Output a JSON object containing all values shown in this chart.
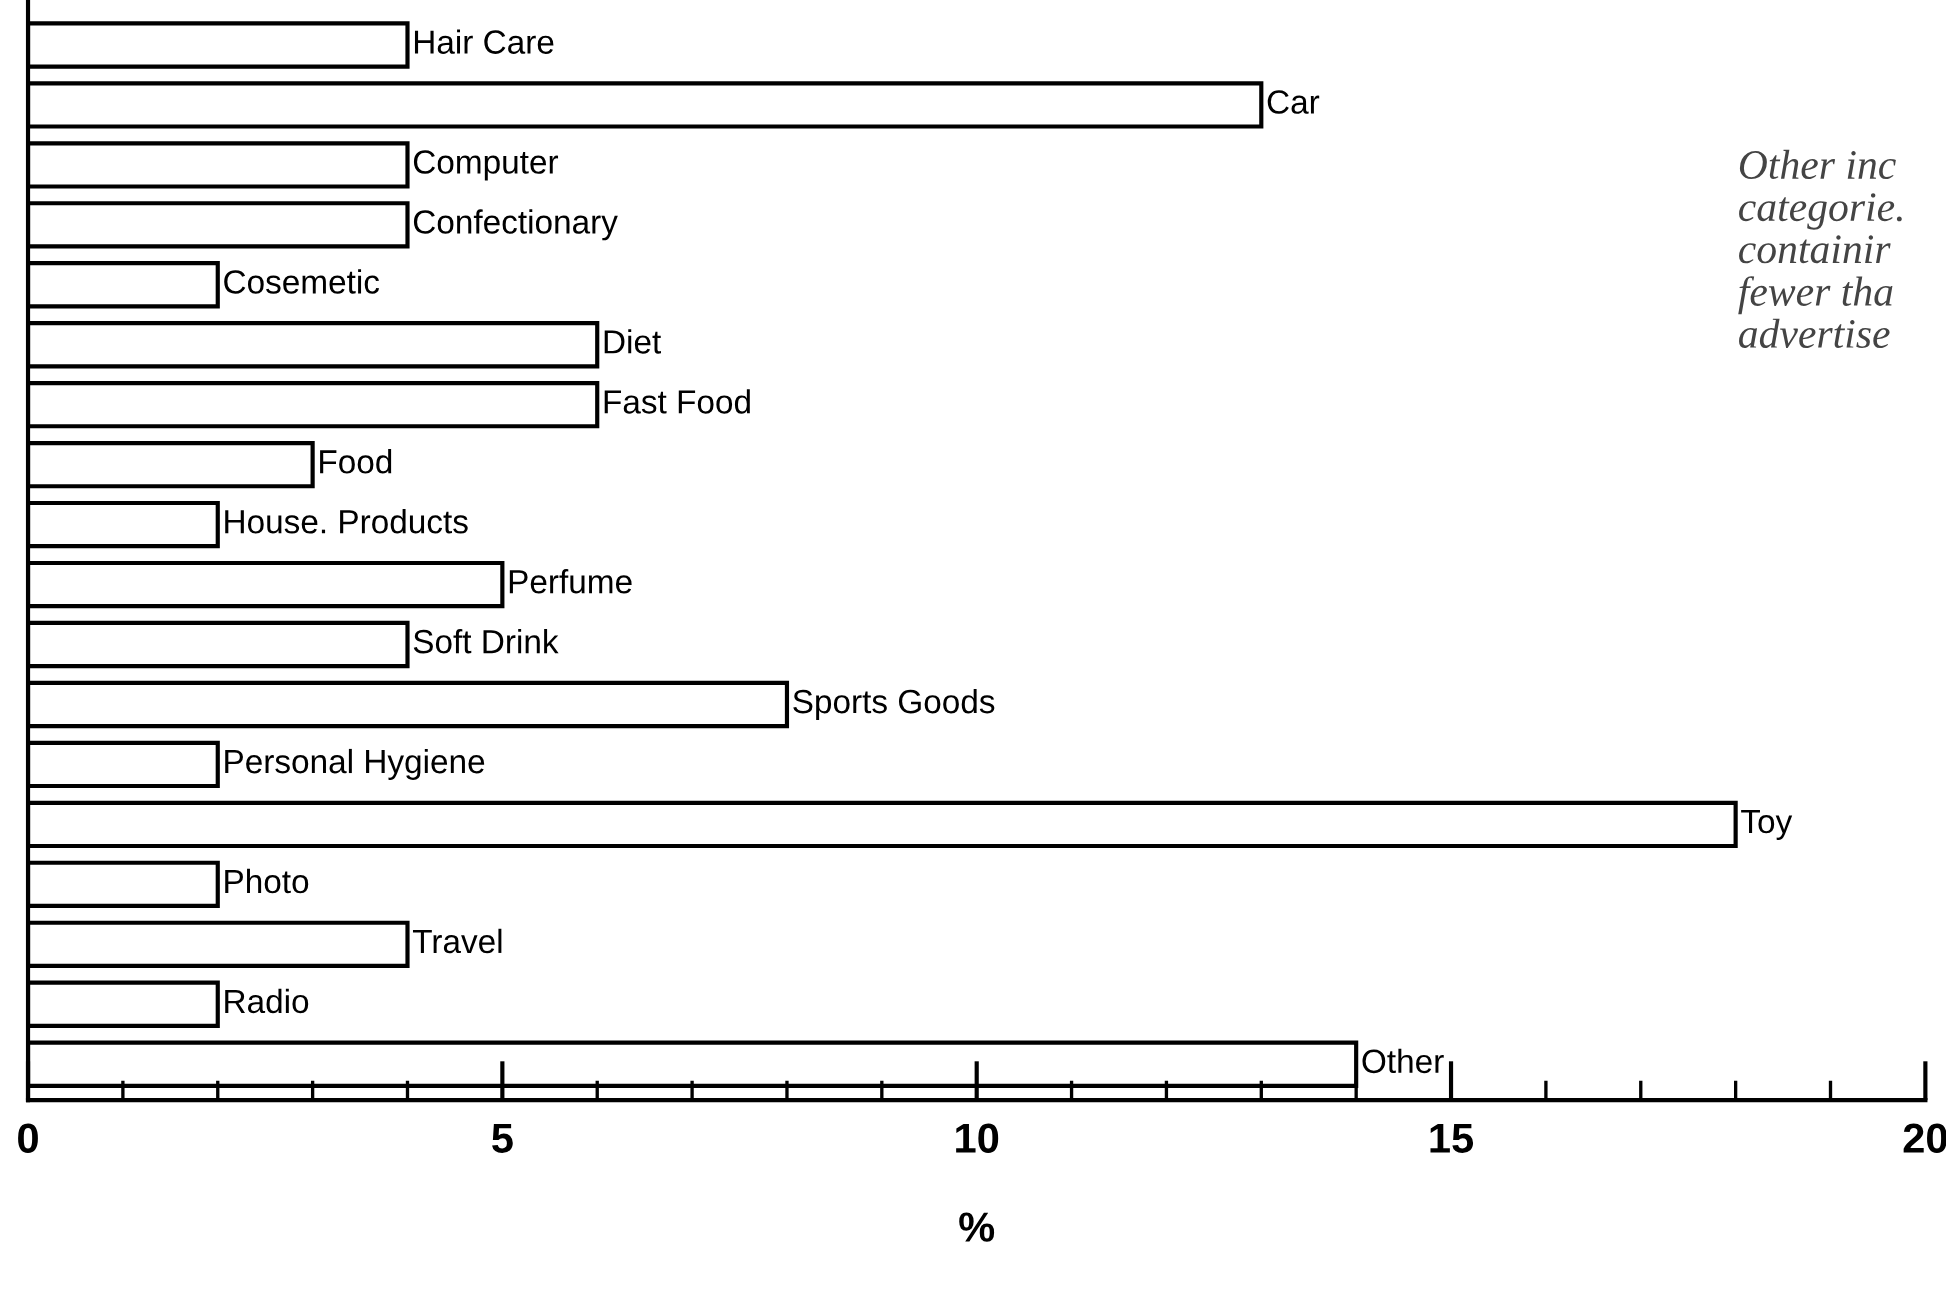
{
  "chart_data": {
    "type": "bar",
    "orientation": "horizontal",
    "xlabel": "%",
    "categories": [
      "Hair Care",
      "Car",
      "Computer",
      "Confectionary",
      "Cosemetic",
      "Diet",
      "Fast Food",
      "Food",
      "House. Products",
      "Perfume",
      "Soft Drink",
      "Sports Goods",
      "Personal Hygiene",
      "Toy",
      "Photo",
      "Travel",
      "Radio",
      "Other"
    ],
    "values": [
      4,
      13,
      4,
      4,
      2,
      6,
      6,
      3,
      2,
      5,
      4,
      8,
      2,
      18,
      2,
      4,
      2,
      14
    ],
    "color": "#ffffff",
    "xlim": [
      0,
      20
    ],
    "xticks": [
      0,
      {
        "value": 1,
        "label": null
      },
      {
        "value": 2,
        "label": null
      },
      {
        "value": 3,
        "label": null
      },
      {
        "value": 4,
        "label": null
      },
      5,
      {
        "value": 6,
        "label": null
      },
      {
        "value": 7,
        "label": null
      },
      {
        "value": 8,
        "label": null
      },
      {
        "value": 9,
        "label": null
      },
      10,
      {
        "value": 11,
        "label": null
      },
      {
        "value": 12,
        "label": null
      },
      {
        "value": 13,
        "label": null
      },
      {
        "value": 14,
        "label": null
      },
      15,
      {
        "value": 16,
        "label": null
      },
      {
        "value": 17,
        "label": null
      },
      {
        "value": 18,
        "label": null
      },
      {
        "value": 19,
        "label": null
      },
      20
    ],
    "tick_labels": "x",
    "grid": false,
    "legend": false,
    "annotations": [
      "Other inc\ncategorie.\ncontainir\nfewer tha\nadvertise"
    ]
  }
}
